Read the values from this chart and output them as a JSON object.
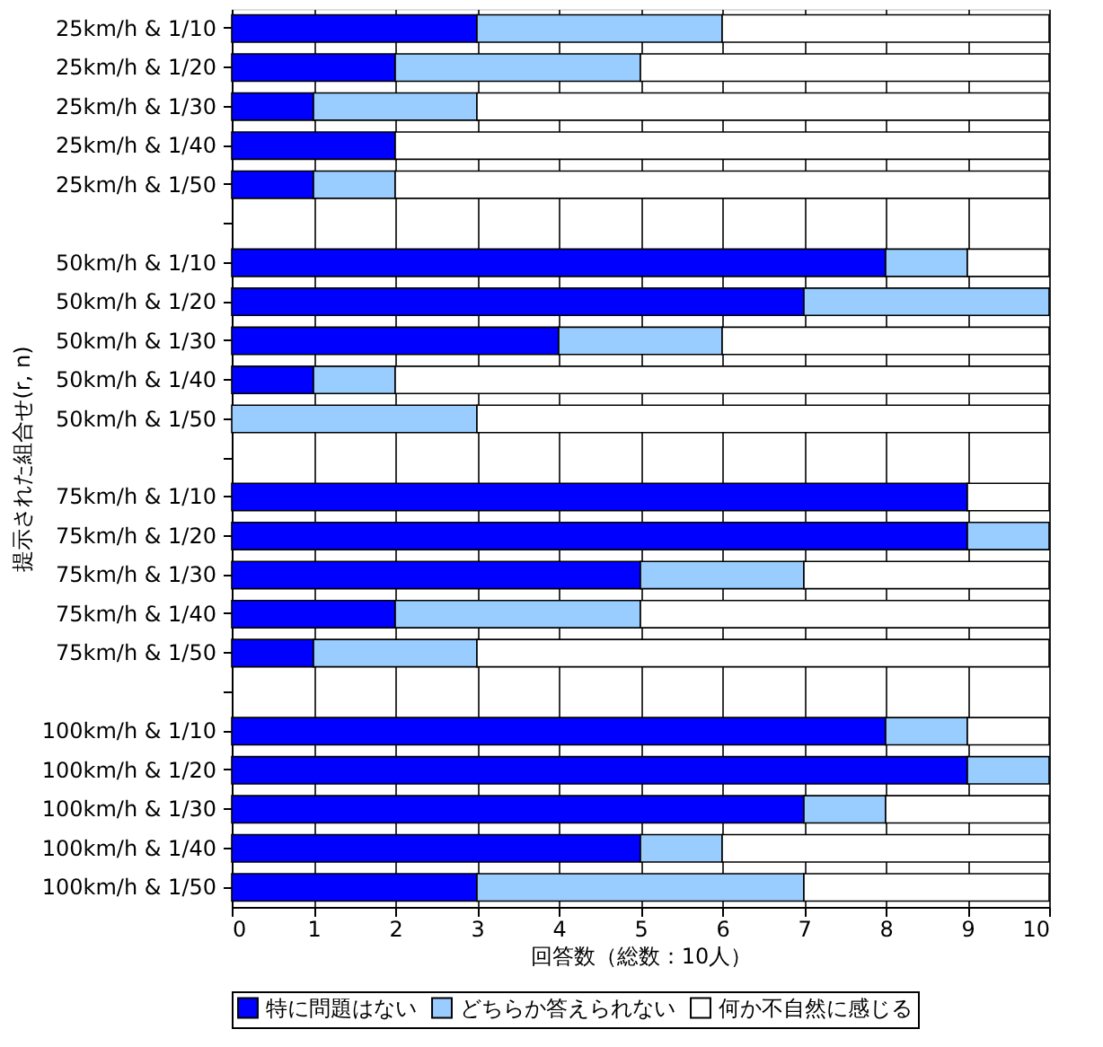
{
  "chart_data": {
    "type": "bar",
    "orientation": "horizontal",
    "stacked": true,
    "xlabel": "回答数（総数：10人）",
    "ylabel": "提示された組合せ(r, n)",
    "categories": [
      "25km/h & 1/10",
      "25km/h & 1/20",
      "25km/h & 1/30",
      "25km/h & 1/40",
      "25km/h & 1/50",
      null,
      "50km/h & 1/10",
      "50km/h & 1/20",
      "50km/h & 1/30",
      "50km/h & 1/40",
      "50km/h & 1/50",
      null,
      "75km/h & 1/10",
      "75km/h & 1/20",
      "75km/h & 1/30",
      "75km/h & 1/40",
      "75km/h & 1/50",
      null,
      "100km/h & 1/10",
      "100km/h & 1/20",
      "100km/h & 1/30",
      "100km/h & 1/40",
      "100km/h & 1/50"
    ],
    "series": [
      {
        "name": "特に問題はない",
        "color": "#0000ff",
        "values": [
          3,
          2,
          1,
          2,
          1,
          null,
          8,
          7,
          4,
          1,
          0,
          null,
          9,
          9,
          5,
          2,
          1,
          null,
          8,
          9,
          7,
          5,
          3
        ]
      },
      {
        "name": "どちらか答えられない",
        "color": "#99ccff",
        "values": [
          3,
          3,
          2,
          0,
          1,
          null,
          1,
          3,
          2,
          1,
          3,
          null,
          0,
          1,
          2,
          3,
          2,
          null,
          1,
          1,
          1,
          1,
          4
        ]
      },
      {
        "name": "何か不自然に感じる",
        "color": "#ffffff",
        "values": [
          4,
          5,
          7,
          8,
          8,
          null,
          1,
          0,
          4,
          8,
          7,
          null,
          1,
          0,
          3,
          5,
          7,
          null,
          1,
          0,
          2,
          4,
          3
        ]
      }
    ],
    "xlim": [
      0,
      10
    ],
    "xticks": [
      0,
      1,
      2,
      3,
      4,
      5,
      6,
      7,
      8,
      9,
      10
    ],
    "grid": "x",
    "legend": "bottom"
  }
}
